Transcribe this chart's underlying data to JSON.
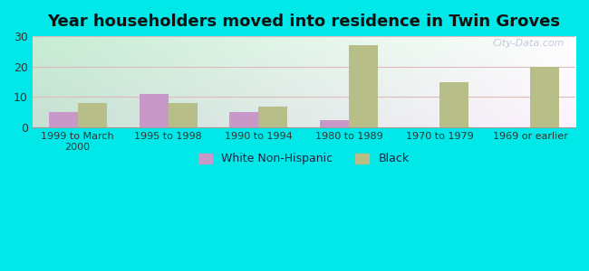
{
  "title": "Year householders moved into residence in Twin Groves",
  "categories": [
    "1999 to March\n2000",
    "1995 to 1998",
    "1990 to 1994",
    "1980 to 1989",
    "1970 to 1979",
    "1969 or earlier"
  ],
  "white_values": [
    5,
    11,
    5,
    2.5,
    0,
    0
  ],
  "black_values": [
    8,
    8,
    7,
    27,
    15,
    20
  ],
  "white_color": "#c899c8",
  "black_color": "#b8be88",
  "background_color": "#00e8e8",
  "ylim": [
    0,
    30
  ],
  "yticks": [
    0,
    10,
    20,
    30
  ],
  "bar_width": 0.32,
  "legend_labels": [
    "White Non-Hispanic",
    "Black"
  ],
  "title_fontsize": 13,
  "watermark": "City-Data.com"
}
